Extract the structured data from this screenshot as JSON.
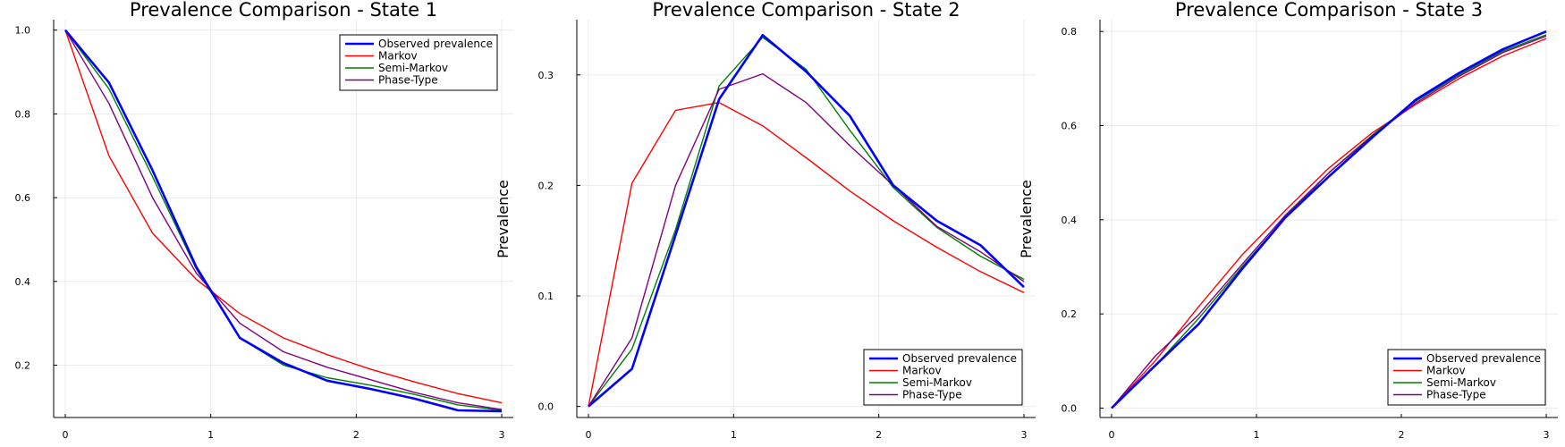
{
  "colors": {
    "Observed prevalence": "#0000ff",
    "Markov": "#ff0000",
    "Semi-Markov": "#008000",
    "Phase-Type": "#800080"
  },
  "chart_data": [
    {
      "type": "line",
      "title": "Prevalence Comparison - State 1",
      "xlabel": "",
      "ylabel": "",
      "xlim": [
        -0.08,
        3.08
      ],
      "ylim": [
        0.075,
        1.025
      ],
      "xticks": [
        0,
        1,
        2,
        3
      ],
      "yticks": [
        0.2,
        0.4,
        0.6,
        0.8,
        1.0
      ],
      "ytick_labels": [
        "0.2",
        "0.4",
        "0.6",
        "0.8",
        "1.0"
      ],
      "grid": true,
      "legend_position": "top-right",
      "series": [
        {
          "name": "Observed prevalence",
          "x": [
            0,
            0.3,
            0.6,
            0.9,
            1.2,
            1.5,
            1.8,
            2.1,
            2.4,
            2.7,
            3.0
          ],
          "values": [
            1.0,
            0.875,
            0.665,
            0.435,
            0.265,
            0.205,
            0.163,
            0.143,
            0.12,
            0.092,
            0.09
          ]
        },
        {
          "name": "Markov",
          "x": [
            0,
            0.3,
            0.6,
            0.9,
            1.2,
            1.5,
            1.8,
            2.1,
            2.4,
            2.7,
            3.0
          ],
          "values": [
            1.0,
            0.7,
            0.515,
            0.405,
            0.323,
            0.265,
            0.225,
            0.19,
            0.16,
            0.132,
            0.11
          ]
        },
        {
          "name": "Semi-Markov",
          "x": [
            0,
            0.3,
            0.6,
            0.9,
            1.2,
            1.5,
            1.8,
            2.1,
            2.4,
            2.7,
            3.0
          ],
          "values": [
            1.0,
            0.86,
            0.65,
            0.43,
            0.265,
            0.2,
            0.17,
            0.152,
            0.13,
            0.105,
            0.092
          ]
        },
        {
          "name": "Phase-Type",
          "x": [
            0,
            0.3,
            0.6,
            0.9,
            1.2,
            1.5,
            1.8,
            2.1,
            2.4,
            2.7,
            3.0
          ],
          "values": [
            1.0,
            0.825,
            0.6,
            0.42,
            0.3,
            0.232,
            0.195,
            0.165,
            0.135,
            0.11,
            0.094
          ]
        }
      ]
    },
    {
      "type": "line",
      "title": "Prevalence Comparison - State 2",
      "xlabel": "",
      "ylabel": "Prevalence",
      "xlim": [
        -0.08,
        3.08
      ],
      "ylim": [
        -0.01,
        0.35
      ],
      "xticks": [
        0,
        1,
        2,
        3
      ],
      "yticks": [
        0.0,
        0.1,
        0.2,
        0.3
      ],
      "ytick_labels": [
        "0.0",
        "0.1",
        "0.2",
        "0.3"
      ],
      "grid": true,
      "legend_position": "bottom-right",
      "series": [
        {
          "name": "Observed prevalence",
          "x": [
            0,
            0.3,
            0.6,
            0.9,
            1.2,
            1.5,
            1.8,
            2.1,
            2.4,
            2.7,
            3.0
          ],
          "values": [
            0.0,
            0.034,
            0.155,
            0.278,
            0.336,
            0.303,
            0.263,
            0.2,
            0.168,
            0.146,
            0.108
          ]
        },
        {
          "name": "Markov",
          "x": [
            0,
            0.3,
            0.6,
            0.9,
            1.2,
            1.5,
            1.8,
            2.1,
            2.4,
            2.7,
            3.0
          ],
          "values": [
            0.0,
            0.202,
            0.268,
            0.275,
            0.254,
            0.225,
            0.195,
            0.168,
            0.144,
            0.122,
            0.103
          ]
        },
        {
          "name": "Semi-Markov",
          "x": [
            0,
            0.3,
            0.6,
            0.9,
            1.2,
            1.5,
            1.8,
            2.1,
            2.4,
            2.7,
            3.0
          ],
          "values": [
            0.0,
            0.052,
            0.16,
            0.29,
            0.334,
            0.305,
            0.25,
            0.198,
            0.162,
            0.136,
            0.115
          ]
        },
        {
          "name": "Phase-Type",
          "x": [
            0,
            0.3,
            0.6,
            0.9,
            1.2,
            1.5,
            1.8,
            2.1,
            2.4,
            2.7,
            3.0
          ],
          "values": [
            0.0,
            0.062,
            0.2,
            0.287,
            0.301,
            0.275,
            0.236,
            0.2,
            0.163,
            0.14,
            0.113
          ]
        }
      ]
    },
    {
      "type": "line",
      "title": "Prevalence Comparison - State 3",
      "xlabel": "",
      "ylabel": "Prevalence",
      "xlim": [
        -0.08,
        3.08
      ],
      "ylim": [
        -0.02,
        0.825
      ],
      "xticks": [
        0,
        1,
        2,
        3
      ],
      "yticks": [
        0.0,
        0.2,
        0.4,
        0.6,
        0.8
      ],
      "ytick_labels": [
        "0.0",
        "0.2",
        "0.4",
        "0.6",
        "0.8"
      ],
      "grid": true,
      "legend_position": "bottom-right",
      "series": [
        {
          "name": "Observed prevalence",
          "x": [
            0,
            0.3,
            0.6,
            0.9,
            1.2,
            1.5,
            1.8,
            2.1,
            2.4,
            2.7,
            3.0
          ],
          "values": [
            0.0,
            0.09,
            0.178,
            0.295,
            0.405,
            0.492,
            0.575,
            0.655,
            0.712,
            0.762,
            0.8
          ]
        },
        {
          "name": "Markov",
          "x": [
            0,
            0.3,
            0.6,
            0.9,
            1.2,
            1.5,
            1.8,
            2.1,
            2.4,
            2.7,
            3.0
          ],
          "values": [
            0.0,
            0.1,
            0.215,
            0.325,
            0.42,
            0.51,
            0.585,
            0.645,
            0.7,
            0.748,
            0.785
          ]
        },
        {
          "name": "Semi-Markov",
          "x": [
            0,
            0.3,
            0.6,
            0.9,
            1.2,
            1.5,
            1.8,
            2.1,
            2.4,
            2.7,
            3.0
          ],
          "values": [
            0.0,
            0.09,
            0.19,
            0.3,
            0.405,
            0.5,
            0.58,
            0.652,
            0.708,
            0.758,
            0.793
          ]
        },
        {
          "name": "Phase-Type",
          "x": [
            0,
            0.3,
            0.6,
            0.9,
            1.2,
            1.5,
            1.8,
            2.1,
            2.4,
            2.7,
            3.0
          ],
          "values": [
            0.0,
            0.11,
            0.198,
            0.305,
            0.41,
            0.5,
            0.578,
            0.648,
            0.705,
            0.755,
            0.79
          ]
        }
      ]
    }
  ]
}
